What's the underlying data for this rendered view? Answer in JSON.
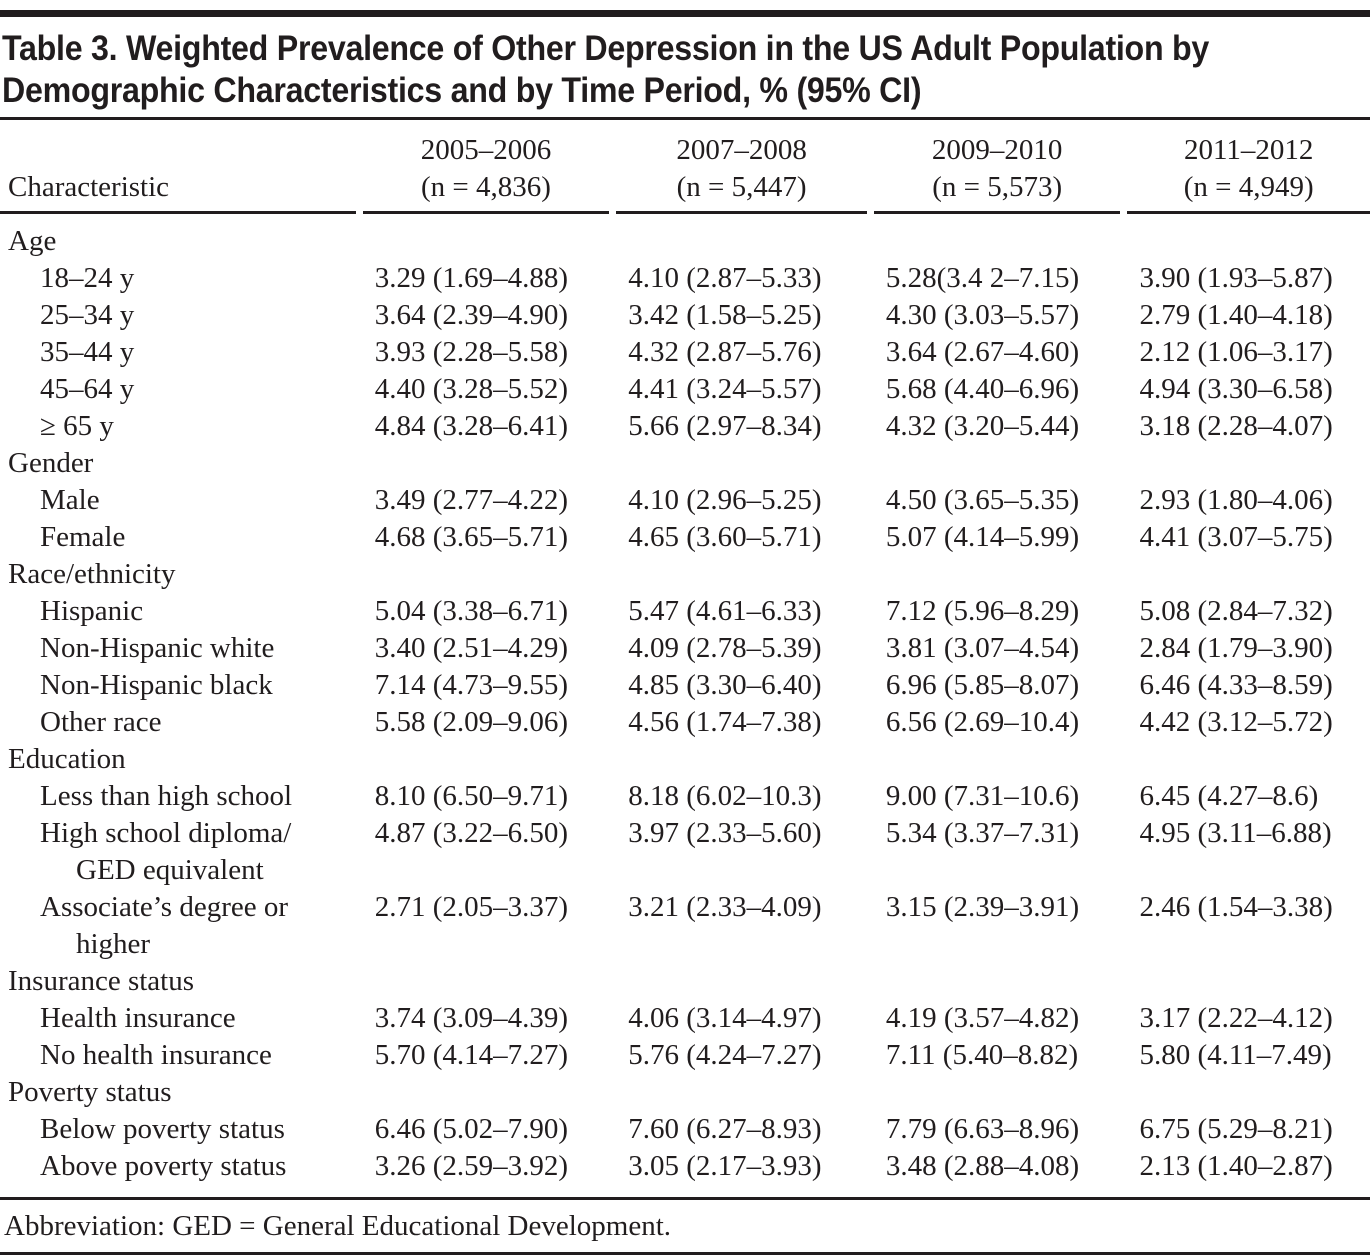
{
  "colors": {
    "ink": "#211d1e",
    "background": "#ffffff"
  },
  "page": {
    "title_line1": "Table 3. Weighted Prevalence of Other Depression in the US Adult Population by",
    "title_line2": "Demographic Characteristics and by Time Period, % (95% CI)",
    "footnote": "Abbreviation: GED = General Educational Development."
  },
  "table": {
    "characteristic_header": "Characteristic",
    "columns": [
      {
        "period": "2005–2006",
        "n": "(n = 4,836)"
      },
      {
        "period": "2007–2008",
        "n": "(n = 5,447)"
      },
      {
        "period": "2009–2010",
        "n": "(n = 5,573)"
      },
      {
        "period": "2011–2012",
        "n": "(n = 4,949)"
      }
    ],
    "rows": [
      {
        "type": "group",
        "label": "Age"
      },
      {
        "type": "item",
        "label": "18–24 y",
        "values": [
          "3.29 (1.69–4.88)",
          "4.10 (2.87–5.33)",
          "5.28(3.4 2–7.15)",
          "3.90 (1.93–5.87)"
        ]
      },
      {
        "type": "item",
        "label": "25–34 y",
        "values": [
          "3.64 (2.39–4.90)",
          "3.42 (1.58–5.25)",
          "4.30 (3.03–5.57)",
          "2.79 (1.40–4.18)"
        ]
      },
      {
        "type": "item",
        "label": "35–44 y",
        "values": [
          "3.93 (2.28–5.58)",
          "4.32 (2.87–5.76)",
          "3.64 (2.67–4.60)",
          "2.12 (1.06–3.17)"
        ]
      },
      {
        "type": "item",
        "label": "45–64 y",
        "values": [
          "4.40 (3.28–5.52)",
          "4.41 (3.24–5.57)",
          "5.68 (4.40–6.96)",
          "4.94 (3.30–6.58)"
        ]
      },
      {
        "type": "item",
        "label": "≥ 65 y",
        "values": [
          "4.84 (3.28–6.41)",
          "5.66 (2.97–8.34)",
          "4.32 (3.20–5.44)",
          "3.18 (2.28–4.07)"
        ]
      },
      {
        "type": "group",
        "label": "Gender"
      },
      {
        "type": "item",
        "label": "Male",
        "values": [
          "3.49 (2.77–4.22)",
          "4.10 (2.96–5.25)",
          "4.50 (3.65–5.35)",
          "2.93 (1.80–4.06)"
        ]
      },
      {
        "type": "item",
        "label": "Female",
        "values": [
          "4.68 (3.65–5.71)",
          "4.65 (3.60–5.71)",
          "5.07 (4.14–5.99)",
          "4.41 (3.07–5.75)"
        ]
      },
      {
        "type": "group",
        "label": "Race/ethnicity"
      },
      {
        "type": "item",
        "label": "Hispanic",
        "values": [
          "5.04 (3.38–6.71)",
          "5.47 (4.61–6.33)",
          "7.12 (5.96–8.29)",
          "5.08 (2.84–7.32)"
        ]
      },
      {
        "type": "item",
        "label": "Non-Hispanic white",
        "values": [
          "3.40 (2.51–4.29)",
          "4.09 (2.78–5.39)",
          "3.81 (3.07–4.54)",
          "2.84 (1.79–3.90)"
        ]
      },
      {
        "type": "item",
        "label": "Non-Hispanic black",
        "values": [
          "7.14 (4.73–9.55)",
          "4.85 (3.30–6.40)",
          "6.96 (5.85–8.07)",
          "6.46 (4.33–8.59)"
        ]
      },
      {
        "type": "item",
        "label": "Other race",
        "values": [
          "5.58 (2.09–9.06)",
          "4.56 (1.74–7.38)",
          "6.56 (2.69–10.4)",
          "4.42 (3.12–5.72)"
        ]
      },
      {
        "type": "group",
        "label": "Education"
      },
      {
        "type": "item",
        "label": "Less than high school",
        "values": [
          "8.10 (6.50–9.71)",
          "8.18 (6.02–10.3)",
          "9.00 (7.31–10.6)",
          "6.45 (4.27–8.6)"
        ]
      },
      {
        "type": "item",
        "label": "High school diploma/",
        "label2": "GED equivalent",
        "values": [
          "4.87 (3.22–6.50)",
          "3.97 (2.33–5.60)",
          "5.34 (3.37–7.31)",
          "4.95 (3.11–6.88)"
        ]
      },
      {
        "type": "item",
        "label": "Associate’s degree or",
        "label2": "higher",
        "values": [
          "2.71 (2.05–3.37)",
          "3.21 (2.33–4.09)",
          "3.15 (2.39–3.91)",
          "2.46 (1.54–3.38)"
        ]
      },
      {
        "type": "group",
        "label": "Insurance status"
      },
      {
        "type": "item",
        "label": "Health insurance",
        "values": [
          "3.74 (3.09–4.39)",
          "4.06 (3.14–4.97)",
          "4.19 (3.57–4.82)",
          "3.17 (2.22–4.12)"
        ]
      },
      {
        "type": "item",
        "label": "No health insurance",
        "values": [
          "5.70 (4.14–7.27)",
          "5.76 (4.24–7.27)",
          "7.11 (5.40–8.82)",
          "5.80 (4.11–7.49)"
        ]
      },
      {
        "type": "group",
        "label": "Poverty status"
      },
      {
        "type": "item",
        "label": "Below poverty status",
        "values": [
          "6.46 (5.02–7.90)",
          "7.60 (6.27–8.93)",
          "7.79 (6.63–8.96)",
          "6.75 (5.29–8.21)"
        ]
      },
      {
        "type": "item",
        "label": "Above poverty status",
        "values": [
          "3.26 (2.59–3.92)",
          "3.05 (2.17–3.93)",
          "3.48 (2.88–4.08)",
          "2.13 (1.40–2.87)"
        ]
      }
    ]
  }
}
